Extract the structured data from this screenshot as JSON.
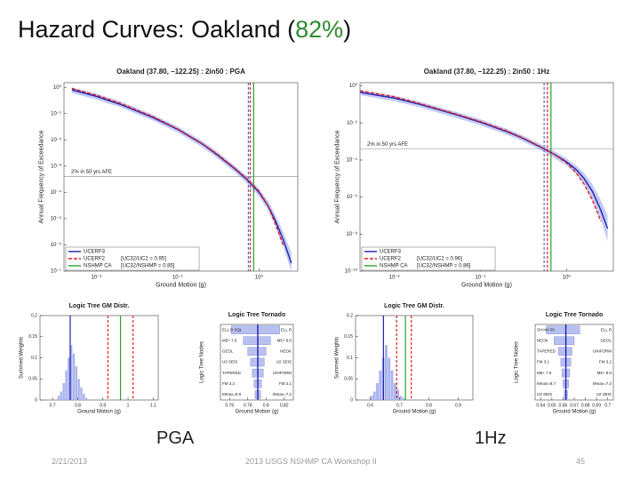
{
  "slide": {
    "title_prefix": "Hazard Curves: Oakland (",
    "title_highlight": "82%",
    "title_suffix": ")",
    "panel_labels": [
      "PGA",
      "1Hz"
    ],
    "footer": {
      "date": "2/21/2013",
      "event": "2013 USGS NSHMP CA Workshop II",
      "page": "45"
    }
  },
  "chart_data": [
    {
      "type": "line",
      "title": "Oakland (37.80, −122.25) : 2in50 : PGA",
      "x_label": "Ground Motion (g)",
      "y_label": "Annual Frequency of Exceedance",
      "x_log": true,
      "y_log": true,
      "xlim": [
        0.004,
        3
      ],
      "ylim": [
        1e-07,
        1.5
      ],
      "xticks": [
        {
          "value": 0.01,
          "label": "10⁻²"
        },
        {
          "value": 0.1,
          "label": "10⁻¹"
        },
        {
          "value": 1,
          "label": "10⁰"
        }
      ],
      "yticks": [
        {
          "value": 1,
          "label": "10⁰"
        },
        {
          "value": 0.1,
          "label": "10⁻¹"
        },
        {
          "value": 0.01,
          "label": "10⁻²"
        },
        {
          "value": 0.001,
          "label": "10⁻³"
        },
        {
          "value": 0.0001,
          "label": "10⁻⁴"
        },
        {
          "value": 1e-05,
          "label": "10⁻⁵"
        },
        {
          "value": 1e-06,
          "label": "10⁻⁶"
        },
        {
          "value": 1e-07,
          "label": "10⁻⁷"
        }
      ],
      "x": [
        0.005,
        0.01,
        0.02,
        0.05,
        0.1,
        0.2,
        0.3,
        0.5,
        0.7,
        1,
        1.3,
        1.6,
        2,
        2.5
      ],
      "series": [
        {
          "name": "UCERF3",
          "color": "#1f1fb4",
          "dash": false,
          "values": [
            0.8,
            0.45,
            0.22,
            0.07,
            0.025,
            0.007,
            0.0028,
            0.0008,
            0.00032,
            0.0001,
            3e-05,
            8e-06,
            1.5e-06,
            2e-07
          ],
          "band_low": [
            0.6,
            0.34,
            0.17,
            0.054,
            0.019,
            0.0053,
            0.0021,
            0.0006,
            0.00023,
            7e-05,
            2e-05,
            5e-06,
            8e-07,
            1e-07
          ],
          "band_high": [
            1,
            0.58,
            0.29,
            0.09,
            0.032,
            0.009,
            0.0037,
            0.00105,
            0.00043,
            0.00014,
            4.5e-05,
            1.3e-05,
            3e-06,
            5e-07
          ]
        },
        {
          "name": "UCERF2",
          "note": "[UC32/UC2 = 0.95]",
          "color": "#e02020",
          "dash": true,
          "values": [
            0.9,
            0.5,
            0.24,
            0.075,
            0.026,
            0.0072,
            0.003,
            0.00085,
            0.00034,
            0.00011,
            3e-05,
            6e-06,
            9e-07,
            null
          ]
        }
      ],
      "vlines": [
        {
          "value": 0.74,
          "color": "#5566dd",
          "dash": true
        },
        {
          "value": 0.78,
          "color": "#e02020",
          "dash": true
        },
        {
          "name": "NSHMP CA",
          "note": "[UC32/NSHMP = 0.85]",
          "value": 0.86,
          "color": "#2ca02c",
          "dash": false
        }
      ],
      "hline": {
        "value": 0.000404,
        "label": "2% in 50 yrs AFE"
      }
    },
    {
      "type": "line",
      "title": "Oakland (37.80, −122.25) : 2in50 : 1Hz",
      "x_label": "Ground Motion (g)",
      "y_label": "Annual Frequency of Exceedance",
      "x_log": true,
      "y_log": true,
      "xlim": [
        0.004,
        3.5
      ],
      "ylim": [
        1e-10,
        1.5
      ],
      "xticks": [
        {
          "value": 0.01,
          "label": "10⁻²"
        },
        {
          "value": 0.1,
          "label": "10⁻¹"
        },
        {
          "value": 1,
          "label": "10⁰"
        }
      ],
      "yticks": [
        {
          "value": 1,
          "label": "10⁰"
        },
        {
          "value": 0.01,
          "label": "10⁻²"
        },
        {
          "value": 0.0001,
          "label": "10⁻⁴"
        },
        {
          "value": 1e-06,
          "label": "10⁻⁶"
        },
        {
          "value": 1e-08,
          "label": "10⁻⁸"
        },
        {
          "value": 1e-10,
          "label": "10⁻¹⁰"
        }
      ],
      "x": [
        0.004,
        0.01,
        0.02,
        0.05,
        0.1,
        0.2,
        0.3,
        0.5,
        0.7,
        1,
        1.3,
        1.6,
        2,
        2.5,
        3
      ],
      "series": [
        {
          "name": "UCERF3",
          "color": "#1f1fb4",
          "dash": false,
          "values": [
            0.45,
            0.22,
            0.1,
            0.03,
            0.011,
            0.0035,
            0.0016,
            0.0005,
            0.00022,
            8e-05,
            3e-05,
            1e-05,
            2e-06,
            2e-07,
            2e-08
          ],
          "band_low": [
            0.32,
            0.15,
            0.07,
            0.02,
            0.0075,
            0.0024,
            0.0011,
            0.00034,
            0.00014,
            5e-05,
            1.7e-05,
            5e-06,
            8e-07,
            6e-08,
            4e-09
          ],
          "band_high": [
            0.6,
            0.3,
            0.14,
            0.042,
            0.016,
            0.005,
            0.0023,
            0.00072,
            0.00033,
            0.00012,
            5e-05,
            2e-05,
            5e-06,
            7e-07,
            1e-07
          ]
        },
        {
          "name": "UCERF2",
          "note": "[UC32/UC2 = 0.96]",
          "color": "#e02020",
          "dash": true,
          "values": [
            0.55,
            0.26,
            0.11,
            0.032,
            0.012,
            0.0038,
            0.0017,
            0.00052,
            0.00022,
            7e-05,
            2e-05,
            5e-06,
            7e-07,
            5e-08,
            null
          ]
        }
      ],
      "vlines": [
        {
          "value": 0.55,
          "color": "#5566dd",
          "dash": true
        },
        {
          "value": 0.6,
          "color": "#e02020",
          "dash": true
        },
        {
          "name": "NSHMP CA",
          "note": "[UC32/NSHMP = 0.86]",
          "value": 0.66,
          "color": "#2ca02c",
          "dash": false
        }
      ],
      "hline": {
        "value": 0.000404,
        "label": "2% in 50 yrs AFE"
      }
    },
    {
      "type": "histogram",
      "title": "Logic Tree GM Distr.",
      "x_label": "Ground Motion (g)",
      "y_label": "Summed Weights",
      "color": "#aab4ee",
      "xlim": [
        0.65,
        1.12
      ],
      "ylim": [
        0,
        0.2
      ],
      "xticks": [
        0.7,
        0.8,
        0.9,
        1,
        1.1
      ],
      "yticks": [
        0,
        0.05,
        0.1,
        0.15,
        0.2
      ],
      "bins": [
        0.72,
        0.73,
        0.74,
        0.75,
        0.76,
        0.77,
        0.78,
        0.79,
        0.8,
        0.81,
        0.82,
        0.83,
        0.84
      ],
      "values": [
        0.01,
        0.02,
        0.04,
        0.07,
        0.1,
        0.13,
        0.11,
        0.08,
        0.05,
        0.03,
        0.015,
        0.005
      ],
      "vlines": [
        {
          "value": 0.77,
          "color": "#1f1fb4",
          "dash": false
        },
        {
          "value": 0.92,
          "color": "#e02020",
          "dash": true
        },
        {
          "value": 0.97,
          "color": "#2ca02c",
          "dash": false
        },
        {
          "value": 1.02,
          "color": "#e02020",
          "dash": true
        }
      ]
    },
    {
      "type": "tornado",
      "title": "Logic Tree Tornado",
      "x_label": "Ground Motion (g)",
      "y_label": "Logic Tree Nodes",
      "color": "#b8c0f0",
      "xlim": [
        0.75,
        0.83
      ],
      "xticks": [
        0.76,
        0.78,
        0.8,
        0.82
      ],
      "center": 0.791,
      "rows": [
        {
          "low_label": "ELL B SQL",
          "high_label": "ELL B",
          "low": 0.762,
          "high": 0.815
        },
        {
          "low_label": "M5+ 7.6",
          "high_label": "M5+ 8.0",
          "low": 0.775,
          "high": 0.805
        },
        {
          "low_label": "GEOL",
          "high_label": "NEOK",
          "low": 0.78,
          "high": 0.8
        },
        {
          "low_label": "U3 SEIS",
          "high_label": "U2 SEIS",
          "low": 0.783,
          "high": 0.798
        },
        {
          "low_label": "TAPERED",
          "high_label": "UNIFORM",
          "low": 0.785,
          "high": 0.797
        },
        {
          "low_label": "FM 3.2",
          "high_label": "FM 3.1",
          "low": 0.787,
          "high": 0.795
        },
        {
          "low_label": "Mmax=8.9",
          "high_label": "Mmax=7.2",
          "low": 0.788,
          "high": 0.794
        }
      ]
    },
    {
      "type": "histogram",
      "title": "Logic Tree GM Distr.",
      "x_label": "Ground Motion (g)",
      "y_label": "Summed Weights",
      "color": "#aab4ee",
      "xlim": [
        0.55,
        0.95
      ],
      "ylim": [
        0,
        0.2
      ],
      "xticks": [
        0.6,
        0.7,
        0.8,
        0.9
      ],
      "yticks": [
        0,
        0.05,
        0.1,
        0.15,
        0.2
      ],
      "bins": [
        0.6,
        0.61,
        0.62,
        0.63,
        0.64,
        0.65,
        0.66,
        0.67,
        0.68,
        0.69,
        0.7,
        0.71,
        0.72
      ],
      "values": [
        0.01,
        0.02,
        0.04,
        0.07,
        0.1,
        0.13,
        0.1,
        0.07,
        0.04,
        0.025,
        0.01,
        0.005
      ],
      "vlines": [
        {
          "value": 0.645,
          "color": "#1f1fb4",
          "dash": false
        },
        {
          "value": 0.69,
          "color": "#e02020",
          "dash": true
        },
        {
          "value": 0.72,
          "color": "#2ca02c",
          "dash": false
        },
        {
          "value": 0.74,
          "color": "#e02020",
          "dash": true
        }
      ]
    },
    {
      "type": "tornado",
      "title": "Logic Tree Tornado",
      "x_label": "Ground Motion (g)",
      "y_label": "Logic Tree Nodes",
      "color": "#b8c0f0",
      "xlim": [
        0.635,
        0.705
      ],
      "xticks": [
        0.64,
        0.65,
        0.66,
        0.67,
        0.68,
        0.69,
        0.7
      ],
      "center": 0.6625,
      "rows": [
        {
          "low_label": "SHAW 09",
          "high_label": "ELL B",
          "low": 0.645,
          "high": 0.675
        },
        {
          "low_label": "NEOK",
          "high_label": "GEOL",
          "low": 0.652,
          "high": 0.67
        },
        {
          "low_label": "TAPERED",
          "high_label": "UNIFORM",
          "low": 0.656,
          "high": 0.668
        },
        {
          "low_label": "FM 3.1",
          "high_label": "FM 3.2",
          "low": 0.658,
          "high": 0.667
        },
        {
          "low_label": "M5+ 7.6",
          "high_label": "M5+ 8.0",
          "low": 0.659,
          "high": 0.666
        },
        {
          "low_label": "Mmax=8.7",
          "high_label": "Mmax=7.2",
          "low": 0.66,
          "high": 0.665
        },
        {
          "low_label": "U3 SEIS",
          "high_label": "U2 SEIS",
          "low": 0.661,
          "high": 0.664
        }
      ]
    }
  ]
}
